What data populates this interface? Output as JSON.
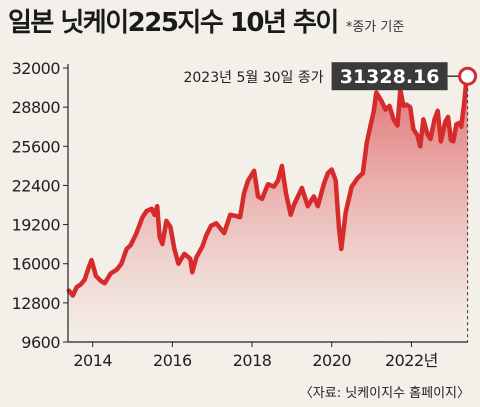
{
  "header": {
    "title": "일본 닛케이225지수 10년 추이",
    "subtitle": "*종가 기준"
  },
  "source": "〈자료: 닛케이지수 홈페이지〉",
  "colors": {
    "line": "#d62b2b",
    "fill_top": "#e47070",
    "callout_bg": "#3a3a3a",
    "background": "#f3efe9"
  },
  "chart_data": {
    "type": "line",
    "ylim": [
      9600,
      32000
    ],
    "yticks": [
      9600,
      12800,
      16000,
      19200,
      22400,
      25600,
      28800,
      32000
    ],
    "xlim": [
      2013.38,
      2023.42
    ],
    "xticks": [
      {
        "value": 2014,
        "label": "2014"
      },
      {
        "value": 2016,
        "label": "2016"
      },
      {
        "value": 2018,
        "label": "2018"
      },
      {
        "value": 2020,
        "label": "2020"
      },
      {
        "value": 2022,
        "label": "2022년"
      }
    ],
    "annotation": {
      "label": "2023년 5월 30일 종가",
      "value_label": "31328.16",
      "x": 2023.41,
      "y": 31328.16
    },
    "series": [
      {
        "points": [
          [
            2013.4,
            13800
          ],
          [
            2013.5,
            13400
          ],
          [
            2013.6,
            14100
          ],
          [
            2013.7,
            14300
          ],
          [
            2013.8,
            14700
          ],
          [
            2013.9,
            15700
          ],
          [
            2013.97,
            16300
          ],
          [
            2014.08,
            15000
          ],
          [
            2014.2,
            14600
          ],
          [
            2014.3,
            14400
          ],
          [
            2014.45,
            15200
          ],
          [
            2014.6,
            15500
          ],
          [
            2014.72,
            16000
          ],
          [
            2014.85,
            17200
          ],
          [
            2014.95,
            17500
          ],
          [
            2015.1,
            18500
          ],
          [
            2015.25,
            19800
          ],
          [
            2015.35,
            20300
          ],
          [
            2015.48,
            20500
          ],
          [
            2015.55,
            20000
          ],
          [
            2015.62,
            20700
          ],
          [
            2015.68,
            18200
          ],
          [
            2015.75,
            17600
          ],
          [
            2015.85,
            19500
          ],
          [
            2015.95,
            19000
          ],
          [
            2016.05,
            17200
          ],
          [
            2016.15,
            16000
          ],
          [
            2016.3,
            16800
          ],
          [
            2016.45,
            16400
          ],
          [
            2016.5,
            15300
          ],
          [
            2016.6,
            16500
          ],
          [
            2016.75,
            17400
          ],
          [
            2016.85,
            18300
          ],
          [
            2016.97,
            19100
          ],
          [
            2017.1,
            19300
          ],
          [
            2017.3,
            18500
          ],
          [
            2017.45,
            20000
          ],
          [
            2017.6,
            19900
          ],
          [
            2017.7,
            19800
          ],
          [
            2017.8,
            21800
          ],
          [
            2017.9,
            22800
          ],
          [
            2018.05,
            23600
          ],
          [
            2018.15,
            21500
          ],
          [
            2018.25,
            21300
          ],
          [
            2018.4,
            22500
          ],
          [
            2018.55,
            22300
          ],
          [
            2018.65,
            22800
          ],
          [
            2018.75,
            24000
          ],
          [
            2018.85,
            21800
          ],
          [
            2018.97,
            20000
          ],
          [
            2019.05,
            20800
          ],
          [
            2019.25,
            22200
          ],
          [
            2019.4,
            20700
          ],
          [
            2019.55,
            21500
          ],
          [
            2019.65,
            20700
          ],
          [
            2019.8,
            22500
          ],
          [
            2019.9,
            23400
          ],
          [
            2020.0,
            23700
          ],
          [
            2020.1,
            22800
          ],
          [
            2020.18,
            19000
          ],
          [
            2020.24,
            17200
          ],
          [
            2020.35,
            20200
          ],
          [
            2020.5,
            22300
          ],
          [
            2020.65,
            23000
          ],
          [
            2020.78,
            23400
          ],
          [
            2020.88,
            25900
          ],
          [
            2020.98,
            27400
          ],
          [
            2021.05,
            28400
          ],
          [
            2021.12,
            30000
          ],
          [
            2021.25,
            29300
          ],
          [
            2021.35,
            28600
          ],
          [
            2021.45,
            28900
          ],
          [
            2021.55,
            27800
          ],
          [
            2021.65,
            27300
          ],
          [
            2021.72,
            30200
          ],
          [
            2021.8,
            28900
          ],
          [
            2021.88,
            29000
          ],
          [
            2021.97,
            28800
          ],
          [
            2022.05,
            27000
          ],
          [
            2022.15,
            26500
          ],
          [
            2022.22,
            25600
          ],
          [
            2022.3,
            27800
          ],
          [
            2022.4,
            26600
          ],
          [
            2022.48,
            26200
          ],
          [
            2022.58,
            27800
          ],
          [
            2022.66,
            28500
          ],
          [
            2022.74,
            26000
          ],
          [
            2022.85,
            27600
          ],
          [
            2022.92,
            28000
          ],
          [
            2022.99,
            26100
          ],
          [
            2023.05,
            26000
          ],
          [
            2023.13,
            27400
          ],
          [
            2023.2,
            27500
          ],
          [
            2023.25,
            27200
          ],
          [
            2023.32,
            29000
          ],
          [
            2023.37,
            30700
          ],
          [
            2023.41,
            31328
          ]
        ]
      }
    ]
  }
}
